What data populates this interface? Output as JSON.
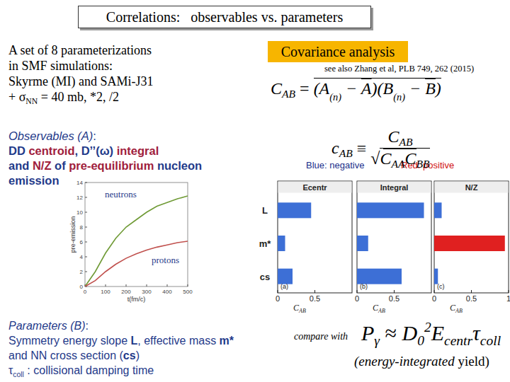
{
  "slide": {
    "title": "Correlations:   observables vs. parameters",
    "intro": [
      [
        {
          "text": "A set of  8 parameterizations"
        }
      ],
      [
        {
          "text": "in SMF simulations:"
        }
      ],
      [
        {
          "text": "Skyrme (MI) and SAMi-J31"
        }
      ],
      [
        {
          "text": "+ σ"
        },
        {
          "text": "NN",
          "style": "sub"
        },
        {
          "text": " = 40 mb, *2, /2"
        }
      ]
    ],
    "observables": [
      [
        {
          "text": "Observables (A)",
          "style": "italic"
        },
        {
          "text": ":"
        }
      ],
      [
        {
          "text": "DD ",
          "style": "bold"
        },
        {
          "text": "centroid",
          "style": "bold",
          "color": "#a0203c"
        },
        {
          "text": ", D’’(ω) ",
          "style": "bold"
        },
        {
          "text": "integral",
          "style": "bold",
          "color": "#a0203c"
        }
      ],
      [
        {
          "text": "and ",
          "style": "bold"
        },
        {
          "text": "N/Z",
          "style": "bold",
          "color": "#a0203c"
        },
        {
          "text": " of ",
          "style": "bold"
        },
        {
          "text": "pre-equilibrium",
          "style": "bold",
          "color": "#a0203c"
        },
        {
          "text": " nucleon",
          "style": "bold"
        }
      ],
      [
        {
          "text": "emission",
          "style": "bold"
        }
      ]
    ],
    "parameters": [
      [
        {
          "text": "Parameters (B)",
          "style": "italic"
        },
        {
          "text": ":"
        }
      ],
      [
        {
          "text": "Symmetry energy slope "
        },
        {
          "text": "L",
          "style": "bold"
        },
        {
          "text": ", effective mass "
        },
        {
          "text": "m*",
          "style": "bold"
        }
      ],
      [
        {
          "text": "and NN cross section ("
        },
        {
          "text": "cs",
          "style": "bold"
        },
        {
          "text": ")"
        }
      ],
      [
        {
          "text": "τ"
        },
        {
          "text": "coll",
          "style": "sub"
        },
        {
          "text": " : collisional damping time"
        }
      ]
    ],
    "covariance_box": "Covariance analysis",
    "reference": "see also Zhang et al, PLB 749, 262 (2015)",
    "legend_note": [
      {
        "text": "Blue: negative",
        "color": "#1a2f8a"
      },
      {
        "text": "Red: positive",
        "color": "#d01010"
      }
    ],
    "compare_text": "compare with",
    "yield_note": [
      {
        "text": "(energy-integrated ",
        "style": "italic"
      },
      {
        "text": "yield)"
      }
    ]
  },
  "formulas": {
    "covariance": {
      "lhs": [
        {
          "text": "C"
        },
        {
          "text": "AB",
          "style": "sub"
        }
      ],
      "op": " = ",
      "overlined": [
        {
          "text": "(A"
        },
        {
          "text": "(n)",
          "style": "small"
        },
        {
          "text": " − "
        },
        {
          "text": "A",
          "style": "bar"
        },
        {
          "text": ")(B"
        },
        {
          "text": "(n)",
          "style": "small"
        },
        {
          "text": " − "
        },
        {
          "text": "B",
          "style": "bar"
        },
        {
          "text": ")"
        }
      ]
    },
    "correlation": {
      "lhs": [
        {
          "text": "c"
        },
        {
          "text": "AB",
          "style": "sub"
        }
      ],
      "op": " ≡ ",
      "numerator": [
        {
          "text": "C"
        },
        {
          "text": "AB",
          "style": "sub"
        }
      ],
      "root": "√",
      "denominator": [
        {
          "text": "C"
        },
        {
          "text": "AA",
          "style": "sub"
        },
        {
          "text": "C"
        },
        {
          "text": "BB",
          "style": "sub"
        }
      ]
    },
    "yield": {
      "lhs": [
        {
          "text": "P"
        },
        {
          "text": "γ",
          "style": "sub"
        }
      ],
      "op": " ≈ ",
      "rhs": [
        {
          "text": "D"
        },
        {
          "text": "0",
          "style": "sub"
        },
        {
          "text": "2",
          "style": "sup"
        },
        {
          "text": "E"
        },
        {
          "text": "centr",
          "style": "sub"
        },
        {
          "text": "τ"
        },
        {
          "text": "coll",
          "style": "sub"
        }
      ]
    }
  },
  "chart_data": [
    {
      "type": "line",
      "x": [
        0,
        50,
        100,
        150,
        200,
        250,
        300,
        350,
        400,
        450,
        500
      ],
      "series": [
        {
          "name": "neutrons",
          "color": "#6f9a35",
          "values": [
            0,
            2,
            4.5,
            6.5,
            8,
            9,
            10,
            10.8,
            11.3,
            11.8,
            12.2
          ]
        },
        {
          "name": "protons",
          "color": "#c0504d",
          "values": [
            0,
            0.8,
            2,
            3,
            3.8,
            4.4,
            4.9,
            5.3,
            5.6,
            5.9,
            6.1
          ]
        }
      ],
      "xlabel": "t(fm/c)",
      "ylabel": "pre-emission",
      "xlim": [
        0,
        500
      ],
      "ylim": [
        0,
        14
      ],
      "xticks": [
        0,
        100,
        200,
        300,
        400,
        500
      ],
      "yticks": [
        0,
        2,
        4,
        6,
        8,
        10,
        12,
        14
      ]
    },
    {
      "type": "bar",
      "orientation": "horizontal",
      "title": "Ecentr",
      "panel_label": "(a)",
      "categories": [
        "L",
        "m*",
        "cs"
      ],
      "values": [
        0.45,
        0.1,
        0.2
      ],
      "colors": [
        "#3d6fd6",
        "#3d6fd6",
        "#3d6fd6"
      ],
      "xlabel": "CAB",
      "xlim": [
        0,
        1
      ],
      "xticks": [
        0,
        0.5
      ]
    },
    {
      "type": "bar",
      "orientation": "horizontal",
      "title": "Integral",
      "panel_label": "(b)",
      "categories": [
        "L",
        "m*",
        "cs"
      ],
      "values": [
        0.9,
        0.15,
        0.6
      ],
      "colors": [
        "#3d6fd6",
        "#3d6fd6",
        "#3d6fd6"
      ],
      "xlabel": "CAB",
      "xlim": [
        0,
        1
      ],
      "xticks": [
        0,
        0.5
      ],
      "tick_labels": "x"
    },
    {
      "type": "bar",
      "orientation": "horizontal",
      "title": "N/Z",
      "panel_label": "(c)",
      "categories": [
        "L",
        "m*",
        "cs"
      ],
      "values": [
        0.1,
        0.95,
        0.05
      ],
      "colors": [
        "#3d6fd6",
        "#e02020",
        "#3d6fd6"
      ],
      "xlabel": "CAB",
      "xlim": [
        0,
        1
      ],
      "xticks": [
        0,
        0.5,
        1
      ],
      "tick_labels": "x"
    }
  ]
}
